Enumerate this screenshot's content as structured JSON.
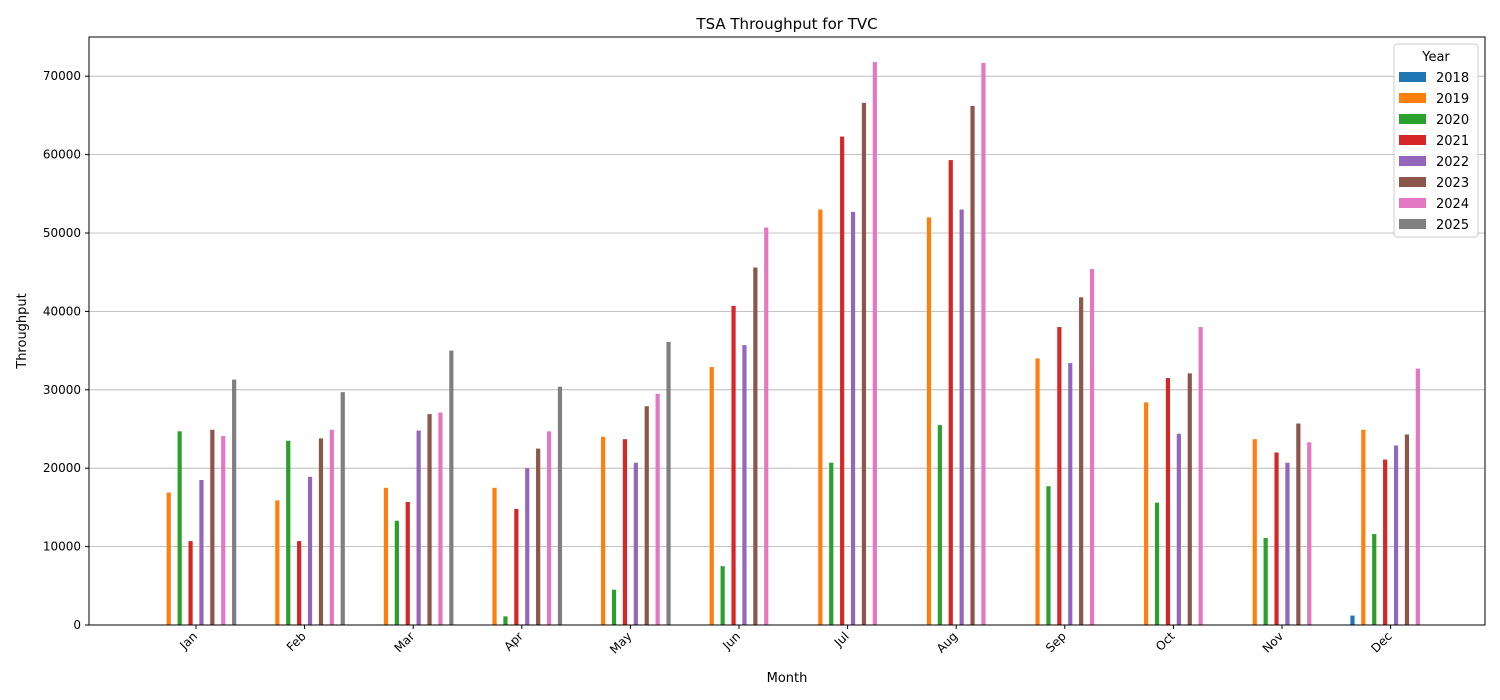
{
  "chart_data": {
    "type": "bar",
    "title": "TSA Throughput for TVC",
    "xlabel": "Month",
    "ylabel": "Throughput",
    "categories": [
      "Jan",
      "Feb",
      "Mar",
      "Apr",
      "May",
      "Jun",
      "Jul",
      "Aug",
      "Sep",
      "Oct",
      "Nov",
      "Dec"
    ],
    "ylim": [
      0,
      75000
    ],
    "yticks": [
      0,
      10000,
      20000,
      30000,
      40000,
      50000,
      60000,
      70000
    ],
    "grid": "horizontal",
    "legend": {
      "title": "Year",
      "placement": "top-right"
    },
    "series": [
      {
        "name": "2018",
        "color": "#1f77b4",
        "values": [
          null,
          null,
          null,
          null,
          null,
          null,
          null,
          null,
          null,
          null,
          null,
          1200
        ]
      },
      {
        "name": "2019",
        "color": "#ff7f0e",
        "values": [
          16900,
          15900,
          17500,
          17500,
          24000,
          32900,
          53000,
          52000,
          34000,
          28400,
          23700,
          24900
        ]
      },
      {
        "name": "2020",
        "color": "#2ca02c",
        "values": [
          24700,
          23500,
          13300,
          1100,
          4500,
          7500,
          20700,
          25500,
          17700,
          15600,
          11100,
          11600
        ]
      },
      {
        "name": "2021",
        "color": "#d62728",
        "values": [
          10700,
          10700,
          15700,
          14800,
          23700,
          40700,
          62300,
          59300,
          38000,
          31500,
          22000,
          21100
        ]
      },
      {
        "name": "2022",
        "color": "#9467bd",
        "values": [
          18500,
          18900,
          24800,
          20000,
          20700,
          35700,
          52700,
          53000,
          33400,
          24400,
          20700,
          22900
        ]
      },
      {
        "name": "2023",
        "color": "#8c564b",
        "values": [
          24900,
          23800,
          26900,
          22500,
          27900,
          45600,
          66600,
          66200,
          41800,
          32100,
          25700,
          24300
        ]
      },
      {
        "name": "2024",
        "color": "#e377c2",
        "values": [
          24100,
          24900,
          27100,
          24700,
          29500,
          50700,
          71800,
          71700,
          45400,
          38000,
          23300,
          32700
        ]
      },
      {
        "name": "2025",
        "color": "#7f7f7f",
        "values": [
          31300,
          29700,
          35000,
          30400,
          36100,
          null,
          null,
          null,
          null,
          null,
          null,
          null
        ]
      }
    ]
  }
}
